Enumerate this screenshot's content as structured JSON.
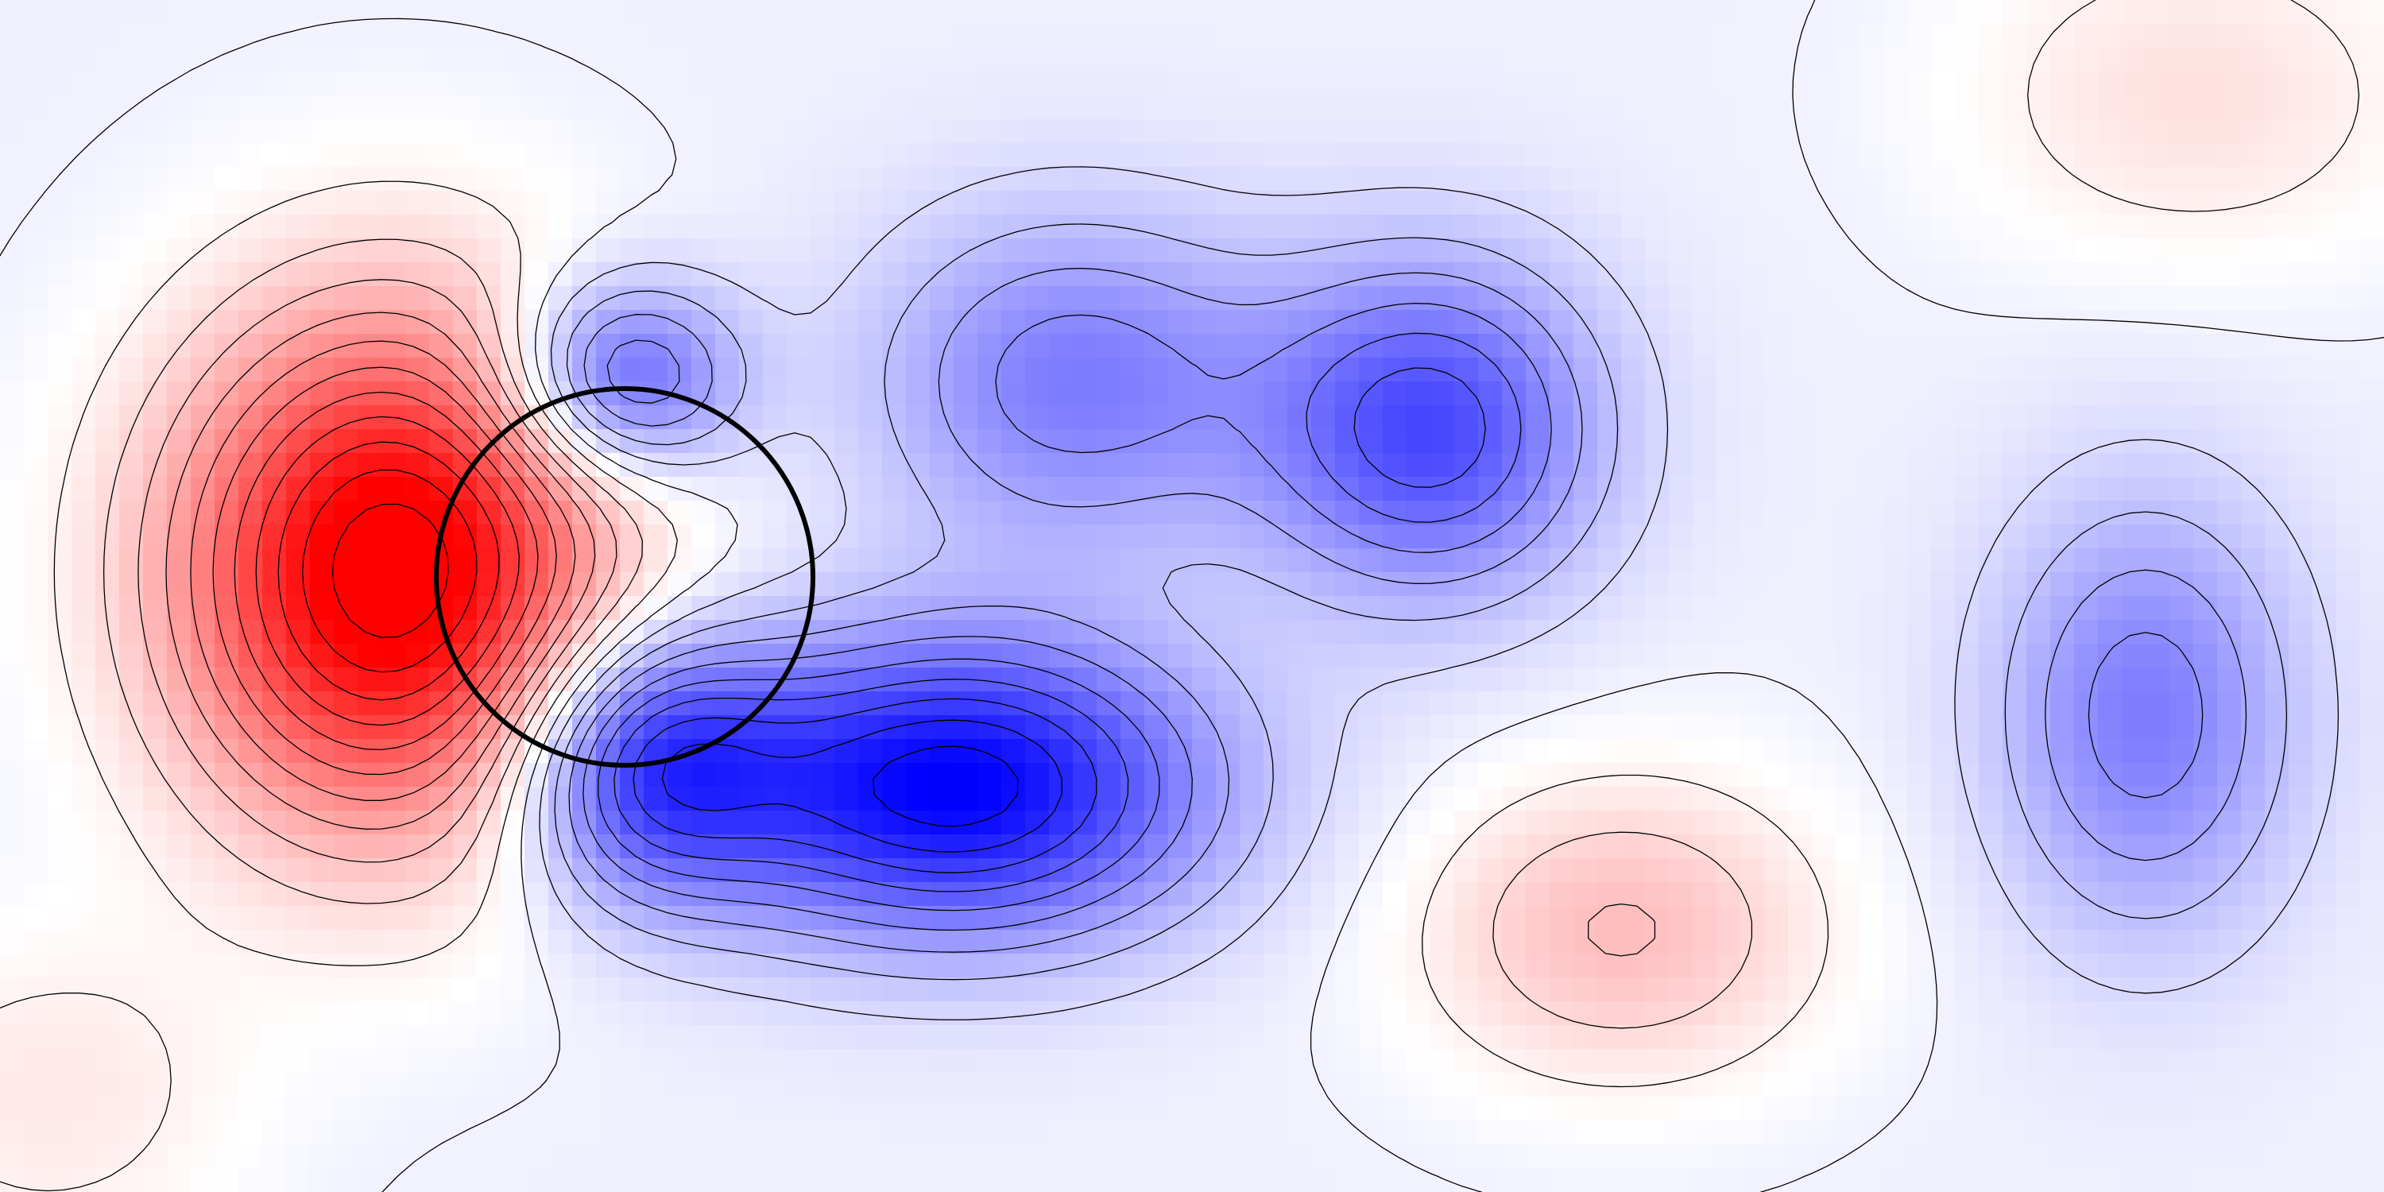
{
  "chart_data": {
    "type": "heatmap",
    "title": "",
    "xlabel": "",
    "ylabel": "",
    "colormap": {
      "negative": "#0000ff",
      "zero": "#ffffff",
      "positive": "#ff0000"
    },
    "contour_color": "#000000",
    "x_range": [
      0,
      100
    ],
    "y_range": [
      0,
      50
    ],
    "grid": false,
    "legend": "none",
    "field_components": [
      {
        "x": 16.5,
        "y": 24,
        "amplitude": 1.2,
        "sigma_x": 6.5,
        "sigma_y": 7.5
      },
      {
        "x": 40,
        "y": 33,
        "amplitude": -0.95,
        "sigma_x": 7.5,
        "sigma_y": 4.5
      },
      {
        "x": 27,
        "y": 32,
        "amplitude": -0.7,
        "sigma_x": 4.0,
        "sigma_y": 4.0
      },
      {
        "x": 26,
        "y": 16,
        "amplitude": -0.65,
        "sigma_x": 3.5,
        "sigma_y": 3.0
      },
      {
        "x": 60,
        "y": 18,
        "amplitude": -0.65,
        "sigma_x": 5.0,
        "sigma_y": 5.0
      },
      {
        "x": 45,
        "y": 16,
        "amplitude": -0.45,
        "sigma_x": 6.0,
        "sigma_y": 5.0
      },
      {
        "x": 90,
        "y": 30,
        "amplitude": -0.45,
        "sigma_x": 4.5,
        "sigma_y": 6.5
      },
      {
        "x": 68,
        "y": 39,
        "amplitude": 0.32,
        "sigma_x": 6.0,
        "sigma_y": 4.5
      },
      {
        "x": 92,
        "y": 4,
        "amplitude": 0.18,
        "sigma_x": 7.0,
        "sigma_y": 5.0
      },
      {
        "x": 2,
        "y": 46,
        "amplitude": 0.15,
        "sigma_x": 6.0,
        "sigma_y": 5.0
      }
    ],
    "background_offset": -0.06,
    "contour_levels": [
      -1.05,
      -0.95,
      -0.85,
      -0.75,
      -0.65,
      -0.55,
      -0.45,
      -0.35,
      -0.25,
      -0.15,
      -0.05,
      0.05,
      0.15,
      0.25,
      0.35,
      0.45,
      0.55,
      0.65,
      0.75,
      0.85,
      0.95,
      1.05
    ],
    "cylinder": {
      "x": 26.2,
      "y": 24.2,
      "radius": 7.9,
      "stroke": "#000000"
    }
  }
}
